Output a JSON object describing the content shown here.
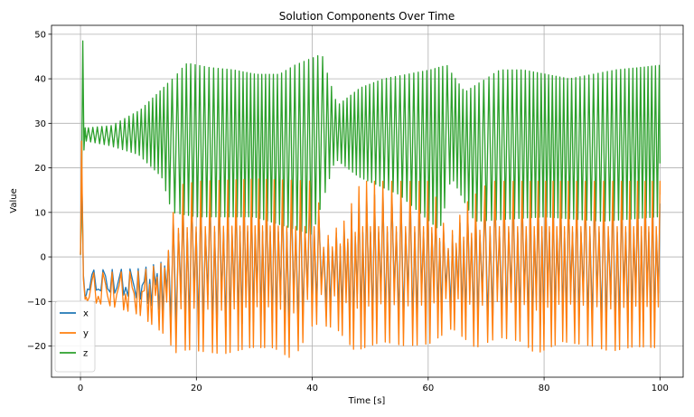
{
  "chart_data": {
    "type": "line",
    "title": "Solution Components Over Time",
    "xlabel": "Time [s]",
    "ylabel": "Value",
    "xlim": [
      -5,
      104
    ],
    "ylim": [
      -27,
      52
    ],
    "xticks": [
      0,
      20,
      40,
      60,
      80,
      100
    ],
    "yticks": [
      -20,
      -10,
      0,
      10,
      20,
      30,
      40,
      50
    ],
    "grid": true,
    "legend_position": "bottom-left",
    "series": [
      {
        "name": "x",
        "color": "#1f77b4"
      },
      {
        "name": "y",
        "color": "#ff7f0e"
      },
      {
        "name": "z",
        "color": "#2ca02c"
      }
    ],
    "x_range": [
      0,
      100
    ],
    "initial_spike": {
      "t": 0.4,
      "z": 48.5,
      "x": 19.5,
      "y": 26
    },
    "switch_times": [
      15.8,
      41.2,
      62.8,
      69.5
    ],
    "envelope": {
      "z_max": [
        {
          "t": 1,
          "v": 29
        },
        {
          "t": 5,
          "v": 29.5
        },
        {
          "t": 10,
          "v": 33
        },
        {
          "t": 14,
          "v": 38
        },
        {
          "t": 18,
          "v": 43.5
        },
        {
          "t": 22,
          "v": 42.5
        },
        {
          "t": 26,
          "v": 42
        },
        {
          "t": 30,
          "v": 41
        },
        {
          "t": 34,
          "v": 41
        },
        {
          "t": 36.5,
          "v": 43
        },
        {
          "t": 41.2,
          "v": 45.5
        },
        {
          "t": 44,
          "v": 34
        },
        {
          "t": 48,
          "v": 38
        },
        {
          "t": 52,
          "v": 40
        },
        {
          "t": 56,
          "v": 41
        },
        {
          "t": 60,
          "v": 42
        },
        {
          "t": 62.8,
          "v": 43
        },
        {
          "t": 66,
          "v": 37
        },
        {
          "t": 69.5,
          "v": 40
        },
        {
          "t": 72,
          "v": 42
        },
        {
          "t": 76,
          "v": 42
        },
        {
          "t": 80,
          "v": 41
        },
        {
          "t": 84,
          "v": 40
        },
        {
          "t": 88,
          "v": 41
        },
        {
          "t": 92,
          "v": 42
        },
        {
          "t": 96,
          "v": 42.5
        },
        {
          "t": 99.5,
          "v": 43
        }
      ],
      "z_min": [
        {
          "t": 1,
          "v": 26
        },
        {
          "t": 5,
          "v": 25
        },
        {
          "t": 10,
          "v": 23
        },
        {
          "t": 14,
          "v": 18
        },
        {
          "t": 15.8,
          "v": 10
        },
        {
          "t": 20,
          "v": 9
        },
        {
          "t": 30,
          "v": 9
        },
        {
          "t": 40,
          "v": 5
        },
        {
          "t": 44,
          "v": 22
        },
        {
          "t": 48,
          "v": 18
        },
        {
          "t": 55,
          "v": 14
        },
        {
          "t": 62,
          "v": 6
        },
        {
          "t": 64,
          "v": 18
        },
        {
          "t": 68,
          "v": 8
        },
        {
          "t": 80,
          "v": 9
        },
        {
          "t": 90,
          "v": 8
        },
        {
          "t": 99.5,
          "v": 9
        }
      ],
      "y_min": [
        {
          "t": 1,
          "v": -10
        },
        {
          "t": 5,
          "v": -11
        },
        {
          "t": 10,
          "v": -13
        },
        {
          "t": 14,
          "v": -17
        },
        {
          "t": 16.2,
          "v": -21.5
        },
        {
          "t": 18.3,
          "v": -20.8
        },
        {
          "t": 24.5,
          "v": -21.8
        },
        {
          "t": 29.3,
          "v": -20.3
        },
        {
          "t": 33.2,
          "v": -20.4
        },
        {
          "t": 36.5,
          "v": -23.1
        },
        {
          "t": 40,
          "v": -15
        },
        {
          "t": 44,
          "v": -16
        },
        {
          "t": 47.2,
          "v": -21.1
        },
        {
          "t": 52,
          "v": -19
        },
        {
          "t": 56,
          "v": -20
        },
        {
          "t": 60,
          "v": -19.5
        },
        {
          "t": 64,
          "v": -16
        },
        {
          "t": 68,
          "v": -20.4
        },
        {
          "t": 72,
          "v": -18
        },
        {
          "t": 76,
          "v": -19
        },
        {
          "t": 78.4,
          "v": -21.8
        },
        {
          "t": 83,
          "v": -19
        },
        {
          "t": 88,
          "v": -20
        },
        {
          "t": 91.3,
          "v": -21.2
        },
        {
          "t": 95.5,
          "v": -20.1
        },
        {
          "t": 99.5,
          "v": -20.4
        }
      ],
      "y_max": [
        {
          "t": 1,
          "v": -9
        },
        {
          "t": 10,
          "v": -8
        },
        {
          "t": 14,
          "v": -3
        },
        {
          "t": 16,
          "v": 16
        },
        {
          "t": 20,
          "v": 17
        },
        {
          "t": 30,
          "v": 17.5
        },
        {
          "t": 40,
          "v": 17
        },
        {
          "t": 41.5,
          "v": 4
        },
        {
          "t": 45,
          "v": 8
        },
        {
          "t": 48,
          "v": 17
        },
        {
          "t": 60,
          "v": 17
        },
        {
          "t": 63,
          "v": 4
        },
        {
          "t": 66,
          "v": 12
        },
        {
          "t": 70,
          "v": 17
        },
        {
          "t": 100,
          "v": 17
        }
      ]
    }
  }
}
